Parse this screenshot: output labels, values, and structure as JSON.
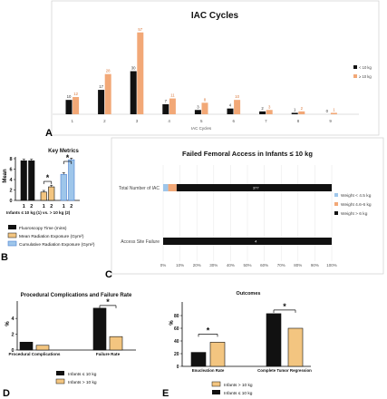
{
  "colors": {
    "black": "#111111",
    "orange": "#f2a877",
    "light_blue": "#9ec6ea",
    "blue": "#4a7fd1",
    "tan": "#f3c580",
    "label_black_bar": "#333333",
    "label_orange_bar": "#d9773a"
  },
  "panel_letters": [
    "A",
    "B",
    "C",
    "D",
    "E"
  ],
  "chart_data": [
    {
      "id": "A",
      "type": "bar",
      "title": "IAC Cycles",
      "xlabel": "IAC Cycles",
      "categories": [
        "1",
        "2",
        "3",
        "4",
        "5",
        "6",
        "7",
        "8",
        "9"
      ],
      "series": [
        {
          "name": "< 10 kg",
          "values": [
            10,
            17,
            30,
            7,
            3,
            4,
            2,
            1,
            0
          ],
          "labels": [
            "10",
            "17",
            "30",
            "7",
            "3",
            "4",
            "2",
            "1",
            "0"
          ]
        },
        {
          "name": "≥ 10 kg",
          "values": [
            12,
            28,
            57,
            11,
            8,
            10,
            3,
            2,
            1
          ],
          "labels": [
            "12",
            "28",
            "57",
            "11",
            "8",
            "10",
            "3",
            "2",
            "1"
          ]
        }
      ],
      "ylim": [
        0,
        60
      ],
      "legend": "right"
    },
    {
      "id": "B",
      "type": "bar",
      "title": "Key Metrics",
      "ylabel": "Mean",
      "xlabel": "Infants ≤ 10 kg (1) vs. > 10 kg (2)",
      "categories": [
        "1",
        "2",
        "1",
        "2",
        "1",
        "2"
      ],
      "groups": [
        {
          "name": "Fluoroscopy Time (mins)",
          "values": [
            7.6,
            7.6
          ]
        },
        {
          "name": "Mean Radiation Exposure (Gym²)",
          "values": [
            1.6,
            2.6
          ]
        },
        {
          "name": "Cumulative Radiation Exposure (Gym²)",
          "values": [
            5.0,
            7.8
          ]
        }
      ],
      "yticks": [
        "0",
        "2",
        "4",
        "6",
        "8"
      ],
      "ylim": [
        0,
        8
      ],
      "significance_marker": "*",
      "legend": "bottom"
    },
    {
      "id": "C",
      "type": "bar",
      "orientation": "horizontal-stacked",
      "title": "Failed Femoral Access in Infants ≤ 10 kg",
      "categories": [
        "Total Number of IAC",
        "Access Site Failure"
      ],
      "series": [
        {
          "name": "Weight < 4.5 kg",
          "values": [
            3,
            0
          ]
        },
        {
          "name": "Weight 4.6-6 kg",
          "values": [
            5,
            0
          ]
        },
        {
          "name": "Weight > 6 kg",
          "values": [
            92,
            100
          ]
        }
      ],
      "bar_labels": [
        "377",
        "4"
      ],
      "xticks": [
        "0%",
        "10%",
        "20%",
        "30%",
        "40%",
        "50%",
        "60%",
        "70%",
        "80%",
        "90%",
        "100%"
      ],
      "xlim": [
        0,
        100
      ],
      "legend": "right"
    },
    {
      "id": "D",
      "type": "bar",
      "title": "Procedural Complications and Failure Rate",
      "ylabel": "%",
      "categories": [
        "Procedural Complications",
        "Failure Rate"
      ],
      "series": [
        {
          "name": "Infants ≤ 10 kg",
          "values": [
            1.0,
            5.3
          ]
        },
        {
          "name": "Infants > 10 kg",
          "values": [
            0.6,
            1.7
          ]
        }
      ],
      "yticks": [
        "0",
        "2",
        "4"
      ],
      "ylim": [
        0,
        6.2
      ],
      "significance_marker": "*",
      "legend": "bottom"
    },
    {
      "id": "E",
      "type": "bar",
      "title": "Outcomes",
      "ylabel": "%",
      "categories": [
        "Enucleation Rate",
        "Complete Tumor Regression"
      ],
      "series": [
        {
          "name": "Infants > 10 kg",
          "values": [
            38,
            60
          ]
        },
        {
          "name": "Infants ≤ 10 kg",
          "values": [
            22,
            83
          ]
        }
      ],
      "yticks": [
        "0",
        "20",
        "40",
        "60",
        "80"
      ],
      "ylim": [
        0,
        100
      ],
      "significance_marker": "*",
      "legend": "bottom"
    }
  ]
}
